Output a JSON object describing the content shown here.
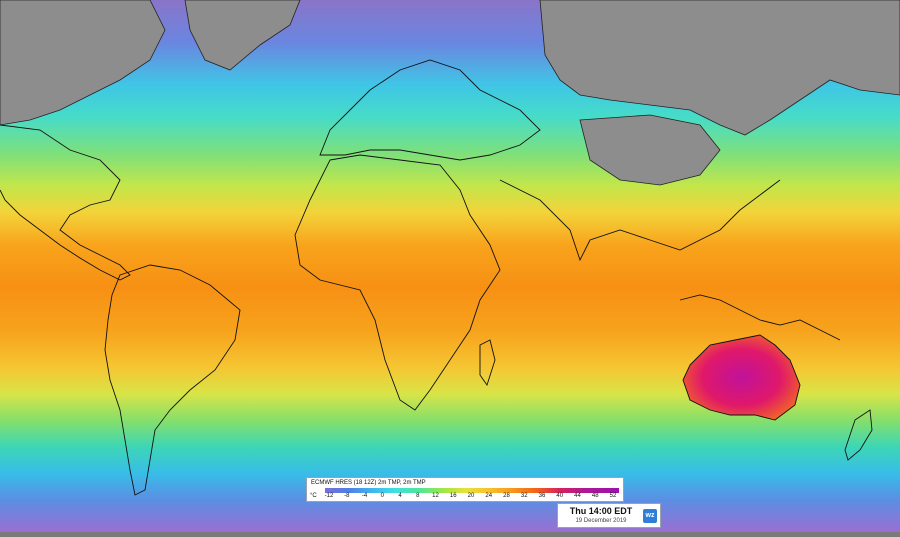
{
  "legend": {
    "title": "ECMWF HRES (18 12Z) 2m TMP, 2m TMP",
    "unit": "°C",
    "ticks": [
      "-12",
      "-8",
      "-4",
      "0",
      "4",
      "8",
      "12",
      "16",
      "20",
      "24",
      "28",
      "32",
      "36",
      "40",
      "44",
      "48",
      "52"
    ]
  },
  "timestamp": {
    "main": "Thu 14:00 EDT",
    "date": "19 December 2019"
  },
  "logo": {
    "text": "wz"
  },
  "colors": {
    "land_no_data": "#8d8d8d",
    "border": "#111111",
    "hot": "#d0108a",
    "warm": "#f79014",
    "cold": "#6a86e0"
  }
}
